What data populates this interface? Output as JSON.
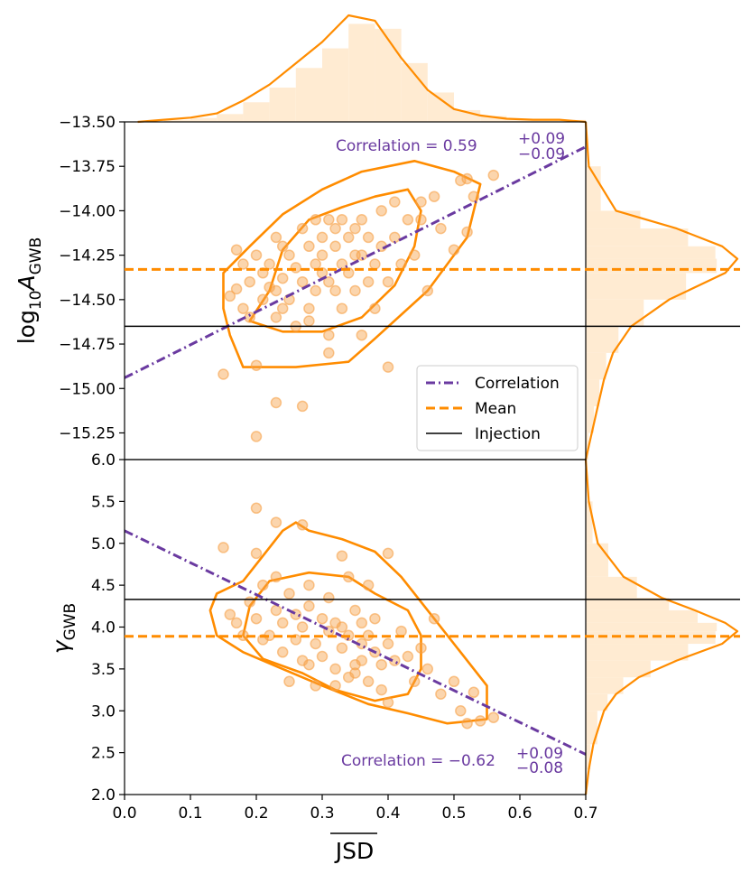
{
  "chart_data": {
    "type": "scatter",
    "xlabel": "JSD",
    "xlim": [
      0.0,
      0.7
    ],
    "x_ticks": [
      "0.0",
      "0.1",
      "0.2",
      "0.3",
      "0.4",
      "0.5",
      "0.6",
      "0.7"
    ],
    "colors": {
      "points": "#f7a24a",
      "mean": "#ff8c00",
      "correlation": "#6a3aa0",
      "injection": "#000000",
      "hist": "#ffebd2"
    },
    "legend": {
      "position": "center-right of top panel",
      "entries": [
        "Correlation",
        "Mean",
        "Injection"
      ]
    },
    "panels": [
      {
        "name": "amplitude",
        "ylabel_main": "log",
        "ylabel_sub": "10",
        "ylabel_var": "A",
        "ylabel_sub2": "GWB",
        "ylim": [
          -15.4,
          -13.5
        ],
        "y_ticks": [
          "−13.50",
          "−13.75",
          "−14.00",
          "−14.25",
          "−14.50",
          "−14.75",
          "−15.00",
          "−15.25"
        ],
        "y_tick_values": [
          -13.5,
          -13.75,
          -14.0,
          -14.25,
          -14.5,
          -14.75,
          -15.0,
          -15.25
        ],
        "mean": -14.33,
        "injection": -14.65,
        "correlation_line": [
          [
            0.0,
            -14.94
          ],
          [
            0.7,
            -13.64
          ]
        ],
        "correlation_text": "Correlation = 0.59",
        "corr_sup": "+0.09",
        "corr_sub": "−0.09",
        "contours": [
          [
            [
              0.19,
              -14.62
            ],
            [
              0.22,
              -14.45
            ],
            [
              0.24,
              -14.22
            ],
            [
              0.28,
              -14.05
            ],
            [
              0.33,
              -13.98
            ],
            [
              0.38,
              -13.92
            ],
            [
              0.43,
              -13.88
            ],
            [
              0.45,
              -14.0
            ],
            [
              0.44,
              -14.2
            ],
            [
              0.41,
              -14.42
            ],
            [
              0.36,
              -14.6
            ],
            [
              0.3,
              -14.68
            ],
            [
              0.24,
              -14.68
            ]
          ],
          [
            [
              0.15,
              -14.55
            ],
            [
              0.15,
              -14.35
            ],
            [
              0.19,
              -14.2
            ],
            [
              0.24,
              -14.02
            ],
            [
              0.3,
              -13.88
            ],
            [
              0.36,
              -13.78
            ],
            [
              0.44,
              -13.72
            ],
            [
              0.5,
              -13.78
            ],
            [
              0.54,
              -13.85
            ],
            [
              0.52,
              -14.15
            ],
            [
              0.46,
              -14.45
            ],
            [
              0.38,
              -14.72
            ],
            [
              0.34,
              -14.85
            ],
            [
              0.26,
              -14.88
            ],
            [
              0.18,
              -14.88
            ],
            [
              0.16,
              -14.7
            ]
          ]
        ],
        "points": [
          [
            0.15,
            -14.92
          ],
          [
            0.16,
            -14.48
          ],
          [
            0.17,
            -14.22
          ],
          [
            0.17,
            -14.44
          ],
          [
            0.18,
            -14.3
          ],
          [
            0.18,
            -14.55
          ],
          [
            0.19,
            -14.4
          ],
          [
            0.19,
            -14.6
          ],
          [
            0.2,
            -14.87
          ],
          [
            0.2,
            -15.27
          ],
          [
            0.2,
            -14.25
          ],
          [
            0.21,
            -14.35
          ],
          [
            0.21,
            -14.5
          ],
          [
            0.22,
            -14.43
          ],
          [
            0.22,
            -14.3
          ],
          [
            0.23,
            -14.15
          ],
          [
            0.23,
            -14.45
          ],
          [
            0.23,
            -14.6
          ],
          [
            0.23,
            -15.08
          ],
          [
            0.24,
            -14.55
          ],
          [
            0.24,
            -14.2
          ],
          [
            0.24,
            -14.38
          ],
          [
            0.25,
            -14.25
          ],
          [
            0.25,
            -14.5
          ],
          [
            0.26,
            -14.32
          ],
          [
            0.26,
            -14.65
          ],
          [
            0.27,
            -14.1
          ],
          [
            0.27,
            -14.4
          ],
          [
            0.27,
            -15.1
          ],
          [
            0.28,
            -14.2
          ],
          [
            0.28,
            -14.55
          ],
          [
            0.28,
            -14.62
          ],
          [
            0.29,
            -14.05
          ],
          [
            0.29,
            -14.3
          ],
          [
            0.29,
            -14.45
          ],
          [
            0.3,
            -14.15
          ],
          [
            0.3,
            -14.35
          ],
          [
            0.3,
            -14.25
          ],
          [
            0.31,
            -14.05
          ],
          [
            0.31,
            -14.4
          ],
          [
            0.31,
            -14.7
          ],
          [
            0.31,
            -14.8
          ],
          [
            0.32,
            -14.2
          ],
          [
            0.32,
            -14.45
          ],
          [
            0.32,
            -14.1
          ],
          [
            0.33,
            -14.3
          ],
          [
            0.33,
            -14.05
          ],
          [
            0.33,
            -14.55
          ],
          [
            0.34,
            -14.15
          ],
          [
            0.34,
            -14.35
          ],
          [
            0.35,
            -14.1
          ],
          [
            0.35,
            -14.25
          ],
          [
            0.35,
            -14.45
          ],
          [
            0.36,
            -14.05
          ],
          [
            0.36,
            -14.25
          ],
          [
            0.36,
            -14.7
          ],
          [
            0.37,
            -14.4
          ],
          [
            0.37,
            -14.15
          ],
          [
            0.38,
            -14.3
          ],
          [
            0.38,
            -14.55
          ],
          [
            0.39,
            -14.0
          ],
          [
            0.39,
            -14.2
          ],
          [
            0.4,
            -14.4
          ],
          [
            0.4,
            -14.88
          ],
          [
            0.41,
            -14.15
          ],
          [
            0.41,
            -13.95
          ],
          [
            0.42,
            -14.3
          ],
          [
            0.43,
            -14.05
          ],
          [
            0.44,
            -14.25
          ],
          [
            0.45,
            -14.05
          ],
          [
            0.45,
            -13.95
          ],
          [
            0.46,
            -14.45
          ],
          [
            0.47,
            -13.92
          ],
          [
            0.48,
            -14.1
          ],
          [
            0.5,
            -14.22
          ],
          [
            0.51,
            -13.83
          ],
          [
            0.52,
            -13.82
          ],
          [
            0.52,
            -14.12
          ],
          [
            0.53,
            -13.92
          ],
          [
            0.56,
            -13.8
          ]
        ],
        "hist_x": [
          0.02,
          0.06,
          0.1,
          0.14,
          0.18,
          0.22,
          0.26,
          0.3,
          0.34,
          0.38,
          0.42,
          0.46,
          0.5,
          0.54,
          0.58,
          0.62,
          0.66,
          0.7
        ],
        "hist_x_heights": [
          0.0,
          0.02,
          0.04,
          0.08,
          0.2,
          0.35,
          0.55,
          0.75,
          1.0,
          0.95,
          0.6,
          0.3,
          0.12,
          0.06,
          0.03,
          0.02,
          0.02,
          0.0
        ],
        "kde_y": [
          [
            -13.5,
            0.0
          ],
          [
            -13.75,
            0.02
          ],
          [
            -14.0,
            0.2
          ],
          [
            -14.1,
            0.6
          ],
          [
            -14.2,
            0.9
          ],
          [
            -14.27,
            1.0
          ],
          [
            -14.35,
            0.92
          ],
          [
            -14.5,
            0.55
          ],
          [
            -14.65,
            0.3
          ],
          [
            -14.8,
            0.18
          ],
          [
            -14.95,
            0.12
          ],
          [
            -15.1,
            0.08
          ],
          [
            -15.25,
            0.04
          ],
          [
            -15.4,
            0.0
          ]
        ]
      },
      {
        "name": "gamma",
        "ylabel_main": "γ",
        "ylabel_sub": "GWB",
        "ylim": [
          2.0,
          6.0
        ],
        "y_ticks": [
          "2.0",
          "2.5",
          "3.0",
          "3.5",
          "4.0",
          "4.5",
          "5.0",
          "5.5",
          "6.0"
        ],
        "y_tick_values": [
          2.0,
          2.5,
          3.0,
          3.5,
          4.0,
          4.5,
          5.0,
          5.5,
          6.0
        ],
        "mean": 3.89,
        "injection": 4.33,
        "correlation_line": [
          [
            0.0,
            5.15
          ],
          [
            0.7,
            2.48
          ]
        ],
        "correlation_text": "Correlation = −0.62",
        "corr_sup": "+0.09",
        "corr_sub": "−0.08",
        "contours": [
          [
            [
              0.18,
              3.9
            ],
            [
              0.19,
              4.25
            ],
            [
              0.22,
              4.55
            ],
            [
              0.28,
              4.65
            ],
            [
              0.34,
              4.6
            ],
            [
              0.38,
              4.4
            ],
            [
              0.43,
              4.2
            ],
            [
              0.45,
              3.9
            ],
            [
              0.45,
              3.5
            ],
            [
              0.43,
              3.2
            ],
            [
              0.38,
              3.12
            ],
            [
              0.32,
              3.25
            ],
            [
              0.27,
              3.45
            ],
            [
              0.21,
              3.62
            ]
          ],
          [
            [
              0.13,
              4.2
            ],
            [
              0.14,
              4.4
            ],
            [
              0.18,
              4.55
            ],
            [
              0.22,
              4.95
            ],
            [
              0.24,
              5.15
            ],
            [
              0.26,
              5.25
            ],
            [
              0.28,
              5.15
            ],
            [
              0.33,
              5.05
            ],
            [
              0.38,
              4.9
            ],
            [
              0.42,
              4.6
            ],
            [
              0.47,
              4.1
            ],
            [
              0.52,
              3.6
            ],
            [
              0.55,
              3.3
            ],
            [
              0.55,
              2.9
            ],
            [
              0.49,
              2.85
            ],
            [
              0.43,
              2.97
            ],
            [
              0.37,
              3.08
            ],
            [
              0.3,
              3.3
            ],
            [
              0.24,
              3.5
            ],
            [
              0.18,
              3.7
            ],
            [
              0.14,
              3.9
            ]
          ]
        ],
        "points": [
          [
            0.15,
            4.95
          ],
          [
            0.16,
            4.15
          ],
          [
            0.17,
            4.05
          ],
          [
            0.18,
            3.9
          ],
          [
            0.19,
            4.3
          ],
          [
            0.2,
            5.42
          ],
          [
            0.2,
            4.88
          ],
          [
            0.2,
            4.1
          ],
          [
            0.21,
            3.85
          ],
          [
            0.21,
            4.5
          ],
          [
            0.22,
            3.9
          ],
          [
            0.23,
            5.25
          ],
          [
            0.23,
            4.6
          ],
          [
            0.23,
            4.2
          ],
          [
            0.24,
            3.7
          ],
          [
            0.24,
            4.05
          ],
          [
            0.25,
            3.35
          ],
          [
            0.25,
            4.4
          ],
          [
            0.26,
            3.85
          ],
          [
            0.26,
            4.15
          ],
          [
            0.27,
            3.6
          ],
          [
            0.27,
            4.0
          ],
          [
            0.27,
            5.22
          ],
          [
            0.28,
            3.55
          ],
          [
            0.28,
            4.25
          ],
          [
            0.28,
            4.5
          ],
          [
            0.29,
            3.3
          ],
          [
            0.29,
            3.8
          ],
          [
            0.3,
            4.1
          ],
          [
            0.3,
            3.65
          ],
          [
            0.31,
            3.95
          ],
          [
            0.31,
            4.35
          ],
          [
            0.32,
            3.5
          ],
          [
            0.32,
            4.05
          ],
          [
            0.32,
            3.3
          ],
          [
            0.33,
            3.75
          ],
          [
            0.33,
            4.0
          ],
          [
            0.33,
            4.85
          ],
          [
            0.34,
            3.4
          ],
          [
            0.34,
            3.9
          ],
          [
            0.34,
            4.6
          ],
          [
            0.35,
            3.55
          ],
          [
            0.35,
            3.45
          ],
          [
            0.35,
            4.2
          ],
          [
            0.36,
            3.8
          ],
          [
            0.36,
            3.6
          ],
          [
            0.36,
            4.05
          ],
          [
            0.37,
            3.35
          ],
          [
            0.37,
            4.5
          ],
          [
            0.37,
            3.9
          ],
          [
            0.38,
            3.7
          ],
          [
            0.38,
            4.1
          ],
          [
            0.39,
            3.25
          ],
          [
            0.39,
            3.55
          ],
          [
            0.4,
            3.8
          ],
          [
            0.4,
            4.88
          ],
          [
            0.4,
            3.1
          ],
          [
            0.41,
            3.6
          ],
          [
            0.42,
            3.95
          ],
          [
            0.43,
            3.65
          ],
          [
            0.44,
            3.35
          ],
          [
            0.45,
            3.75
          ],
          [
            0.46,
            3.5
          ],
          [
            0.47,
            4.1
          ],
          [
            0.48,
            3.2
          ],
          [
            0.5,
            3.35
          ],
          [
            0.51,
            3.0
          ],
          [
            0.52,
            2.85
          ],
          [
            0.53,
            3.22
          ],
          [
            0.54,
            2.88
          ],
          [
            0.56,
            2.92
          ]
        ],
        "kde_y": [
          [
            6.0,
            0.0
          ],
          [
            5.5,
            0.02
          ],
          [
            5.0,
            0.08
          ],
          [
            4.6,
            0.25
          ],
          [
            4.35,
            0.5
          ],
          [
            4.2,
            0.72
          ],
          [
            4.05,
            0.92
          ],
          [
            3.95,
            1.0
          ],
          [
            3.8,
            0.9
          ],
          [
            3.6,
            0.6
          ],
          [
            3.4,
            0.35
          ],
          [
            3.2,
            0.2
          ],
          [
            3.0,
            0.12
          ],
          [
            2.6,
            0.05
          ],
          [
            2.3,
            0.02
          ],
          [
            2.0,
            0.0
          ]
        ]
      }
    ]
  }
}
